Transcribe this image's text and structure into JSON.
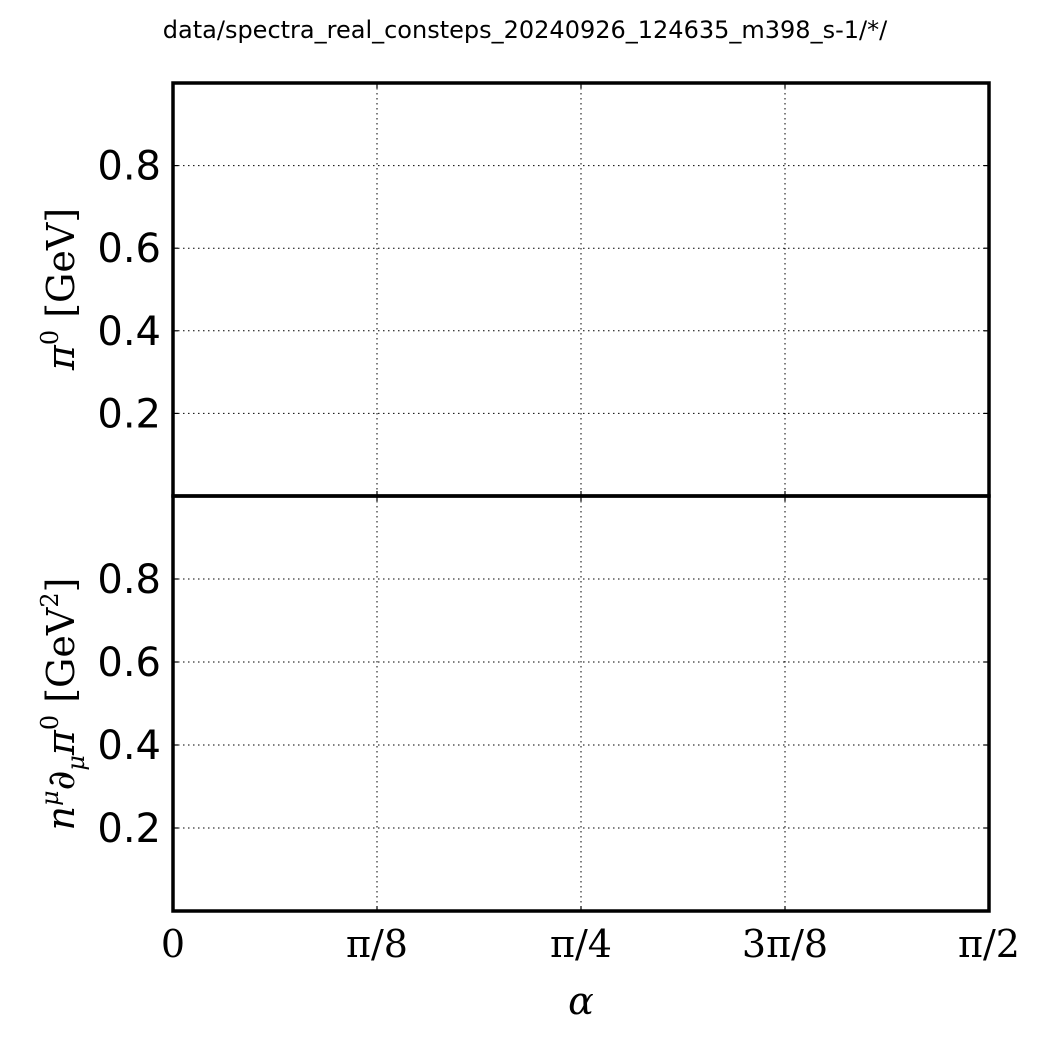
{
  "figure": {
    "title": "data/spectra_real_consteps_20240926_124635_m398_s-1/*/"
  },
  "chart_data": [
    {
      "type": "line",
      "panel": "top",
      "series": [],
      "xlabel": "",
      "ylabel": "π0 [GeV]",
      "ylabel_parts": {
        "symbol": "π",
        "sup": "0",
        "unit": " [GeV]"
      },
      "xlim": [
        0,
        1.5708
      ],
      "ylim": [
        0,
        1.0
      ],
      "yticks": [
        0.2,
        0.4,
        0.6,
        0.8
      ],
      "ytick_labels": [
        "0.2",
        "0.4",
        "0.6",
        "0.8"
      ],
      "xticks": [
        0,
        0.3927,
        0.7854,
        1.1781,
        1.5708
      ],
      "grid": true,
      "grid_style": "dotted"
    },
    {
      "type": "line",
      "panel": "bottom",
      "series": [],
      "xlabel": "α",
      "ylabel": "nμ∂μπ0 [GeV2]",
      "ylabel_parts": {
        "n": "n",
        "mu": "μ",
        "partial": "∂",
        "sub": "μ",
        "pi": "π",
        "sup": "0",
        "unit_pre": " [GeV",
        "unit_sup": "2",
        "unit_post": "]"
      },
      "xlim": [
        0,
        1.5708
      ],
      "ylim": [
        0,
        1.0
      ],
      "yticks": [
        0.2,
        0.4,
        0.6,
        0.8
      ],
      "ytick_labels": [
        "0.2",
        "0.4",
        "0.6",
        "0.8"
      ],
      "xticks": [
        0,
        0.3927,
        0.7854,
        1.1781,
        1.5708
      ],
      "xtick_labels": [
        "0",
        "π/8",
        "π/4",
        "3π/8",
        "π/2"
      ],
      "grid": true,
      "grid_style": "dotted"
    }
  ]
}
